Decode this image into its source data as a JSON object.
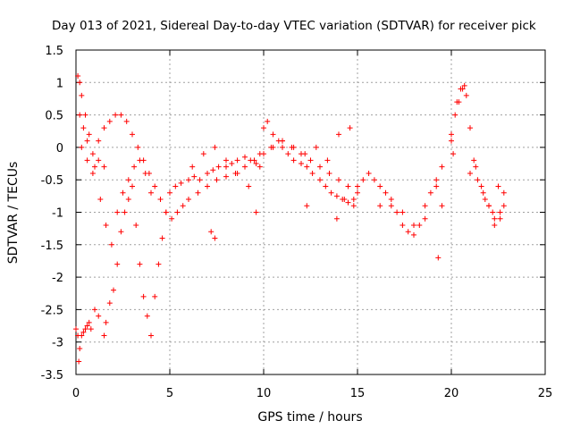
{
  "chart_data": {
    "type": "scatter",
    "title": "Day 013 of 2021, Sidereal Day-to-day VTEC variation (SDTVAR) for receiver pick",
    "xlabel": "GPS time / hours",
    "ylabel": "SDTVAR / TECUs",
    "xlim": [
      0,
      25
    ],
    "ylim": [
      -3.5,
      1.5
    ],
    "x_ticks": [
      0,
      5,
      10,
      15,
      20,
      25
    ],
    "x_tick_labels": [
      "0",
      "5",
      "10",
      "15",
      "20",
      "25"
    ],
    "y_ticks": [
      -3.5,
      -3,
      -2.5,
      -2,
      -1.5,
      -1,
      -0.5,
      0,
      0.5,
      1,
      1.5
    ],
    "y_tick_labels": [
      "-3.5",
      "-3",
      "-2.5",
      "-2",
      "-1.5",
      "-1",
      "-0.5",
      "0",
      "0.5",
      "1",
      "1.5"
    ],
    "grid": true,
    "marker": "plus",
    "color": "#ff0000",
    "series": [
      {
        "name": "SDTVAR",
        "x": [
          0.0,
          0.1,
          0.15,
          0.2,
          0.3,
          0.4,
          0.5,
          0.6,
          0.7,
          0.8,
          1.0,
          1.2,
          1.5,
          1.6,
          1.8,
          2.0,
          2.2,
          2.4,
          2.6,
          2.8,
          3.0,
          3.2,
          3.4,
          3.6,
          3.8,
          4.0,
          4.2,
          4.4,
          4.6,
          4.8,
          5.0,
          5.3,
          5.6,
          6.0,
          6.3,
          6.6,
          7.0,
          7.3,
          7.6,
          8.0,
          8.3,
          8.6,
          9.0,
          9.3,
          9.6,
          9.8,
          10.0,
          10.2,
          10.5,
          10.8,
          11.0,
          11.3,
          11.6,
          12.0,
          12.3,
          12.6,
          13.0,
          13.3,
          13.6,
          13.9,
          14.2,
          14.5,
          14.8,
          15.0,
          15.3,
          15.6,
          15.9,
          16.2,
          16.5,
          16.8,
          17.1,
          17.4,
          17.7,
          18.0,
          18.3,
          18.6,
          18.9,
          19.2,
          19.5,
          20.0,
          20.2,
          20.4,
          20.6,
          20.8,
          21.0,
          21.2,
          21.4,
          21.7,
          22.0,
          22.3,
          22.6,
          22.8,
          0.1,
          0.2,
          0.3,
          0.5,
          0.7,
          1.0,
          1.3,
          1.6,
          1.9,
          2.2,
          2.5,
          2.8,
          3.1,
          3.4,
          3.7,
          4.0,
          0.2,
          0.4,
          0.6,
          0.9,
          1.2,
          1.5,
          0.3,
          0.6,
          0.9,
          1.2,
          1.5,
          1.8,
          2.1,
          2.4,
          2.7,
          3.0,
          3.3,
          3.6,
          3.9,
          4.2,
          4.5,
          4.8,
          5.1,
          5.4,
          5.7,
          6.0,
          6.5,
          7.0,
          7.5,
          8.0,
          8.5,
          9.0,
          9.5,
          10.0,
          10.5,
          11.0,
          11.5,
          12.0,
          12.5,
          13.0,
          13.5,
          14.0,
          14.5,
          15.0,
          6.2,
          6.8,
          7.4,
          8.0,
          8.6,
          9.2,
          9.8,
          10.4,
          11.0,
          11.6,
          12.2,
          12.8,
          13.4,
          14.0,
          14.6,
          7.2,
          7.4,
          9.6,
          12.3,
          13.9,
          14.3,
          14.8,
          16.2,
          16.8,
          17.4,
          18.0,
          18.6,
          19.2,
          19.5,
          19.3,
          20.0,
          20.3,
          20.5,
          20.7,
          21.3,
          21.6,
          22.0,
          22.3,
          22.6,
          22.8,
          20.1,
          21.0,
          21.8,
          22.2,
          22.5
        ],
        "y": [
          -2.8,
          -2.9,
          -3.3,
          -3.1,
          -2.9,
          -2.85,
          -2.8,
          -2.75,
          -2.7,
          -2.8,
          -2.5,
          -2.6,
          -2.9,
          -2.7,
          -2.4,
          -2.2,
          -1.8,
          -1.3,
          -1.0,
          -0.8,
          -0.6,
          -1.2,
          -1.8,
          -2.3,
          -2.6,
          -2.9,
          -2.3,
          -1.8,
          -1.4,
          -1.0,
          -0.7,
          -0.6,
          -0.55,
          -0.5,
          -0.45,
          -0.5,
          -0.4,
          -0.35,
          -0.3,
          -0.3,
          -0.25,
          -0.2,
          -0.15,
          -0.2,
          -0.25,
          -0.1,
          0.3,
          0.4,
          0.2,
          0.1,
          0.0,
          -0.1,
          -0.2,
          -0.25,
          -0.3,
          -0.4,
          -0.5,
          -0.6,
          -0.7,
          -0.75,
          -0.8,
          -0.85,
          -0.8,
          -0.6,
          -0.5,
          -0.4,
          -0.5,
          -0.6,
          -0.7,
          -0.9,
          -1.0,
          -1.2,
          -1.3,
          -1.35,
          -1.2,
          -0.9,
          -0.7,
          -0.5,
          -0.3,
          0.2,
          0.5,
          0.7,
          0.9,
          0.8,
          0.3,
          -0.2,
          -0.5,
          -0.7,
          -0.9,
          -1.1,
          -1.0,
          -0.9,
          1.1,
          1.0,
          0.8,
          0.5,
          0.2,
          -0.3,
          -0.8,
          -1.2,
          -1.5,
          -1.0,
          -0.7,
          -0.5,
          -0.3,
          -0.2,
          -0.4,
          -0.7,
          0.5,
          0.3,
          0.1,
          -0.1,
          -0.2,
          -0.3,
          0.0,
          -0.2,
          -0.4,
          0.1,
          0.3,
          0.4,
          0.5,
          0.5,
          0.4,
          0.2,
          0.0,
          -0.2,
          -0.4,
          -0.6,
          -0.8,
          -1.0,
          -1.1,
          -1.0,
          -0.9,
          -0.8,
          -0.7,
          -0.6,
          -0.5,
          -0.45,
          -0.4,
          -0.3,
          -0.2,
          -0.1,
          0.0,
          0.1,
          0.0,
          -0.1,
          -0.2,
          -0.3,
          -0.4,
          -0.5,
          -0.6,
          -0.7,
          -0.3,
          -0.1,
          0.0,
          -0.2,
          -0.4,
          -0.6,
          -0.3,
          0.0,
          0.1,
          0.0,
          -0.1,
          0.0,
          -0.2,
          0.2,
          0.3,
          -1.3,
          -1.4,
          -1.0,
          -0.9,
          -1.1,
          -0.8,
          -0.9,
          -0.9,
          -0.8,
          -1.0,
          -1.2,
          -1.1,
          -0.6,
          -0.9,
          -1.7,
          0.1,
          0.7,
          0.9,
          0.95,
          -0.3,
          -0.6,
          -0.9,
          -1.2,
          -1.1,
          -0.7,
          -0.1,
          -0.4,
          -0.8,
          -1.0,
          -0.6
        ]
      }
    ]
  }
}
